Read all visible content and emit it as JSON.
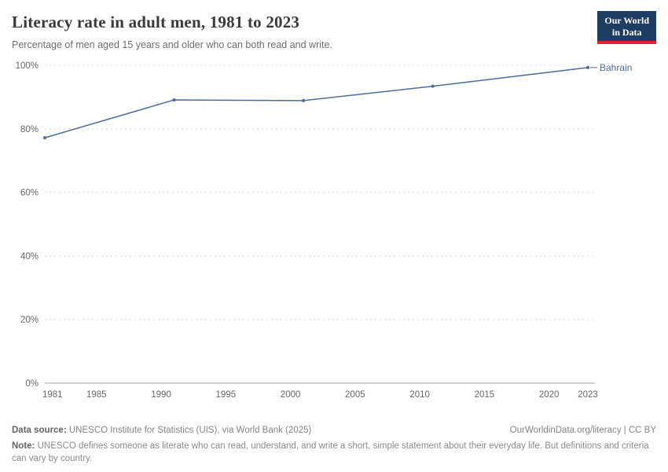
{
  "logo": {
    "line1": "Our World",
    "line2": "in Data",
    "bg_color": "#1d3d63",
    "accent_color": "#e0242a"
  },
  "footer": {
    "data_source_label": "Data source:",
    "data_source_text": " UNESCO Institute for Statistics (UIS), via World Bank (2025)",
    "credit": "OurWorldinData.org/literacy | CC BY",
    "note_label": "Note:",
    "note_text": " UNESCO defines someone as literate who can read, understand, and write a short, simple statement about their everyday life. But definitions and criteria can vary by country."
  },
  "chart_data": {
    "type": "line",
    "title": "Literacy rate in adult men, 1981 to 2023",
    "subtitle": "Percentage of men aged 15 years and older who can both read and write.",
    "xlabel": "",
    "ylabel": "",
    "xlim": [
      1981,
      2023
    ],
    "ylim": [
      0,
      100
    ],
    "x_ticks": [
      1981,
      1985,
      1990,
      1995,
      2000,
      2005,
      2010,
      2015,
      2020,
      2023
    ],
    "y_ticks": [
      0,
      20,
      40,
      60,
      80,
      100
    ],
    "y_tick_suffix": "%",
    "grid": "horizontal-dashed",
    "grid_color": "#dcdcdc",
    "axis_color": "#a1a1a1",
    "tick_label_color": "#666666",
    "legend_position": "end-of-line-label",
    "series": [
      {
        "name": "Bahrain",
        "color": "#4c6a9c",
        "points": [
          {
            "x": 1981,
            "y": 77.2
          },
          {
            "x": 1991,
            "y": 89.1
          },
          {
            "x": 2001,
            "y": 88.9
          },
          {
            "x": 2011,
            "y": 93.4
          },
          {
            "x": 2023,
            "y": 99.3
          }
        ]
      }
    ]
  }
}
